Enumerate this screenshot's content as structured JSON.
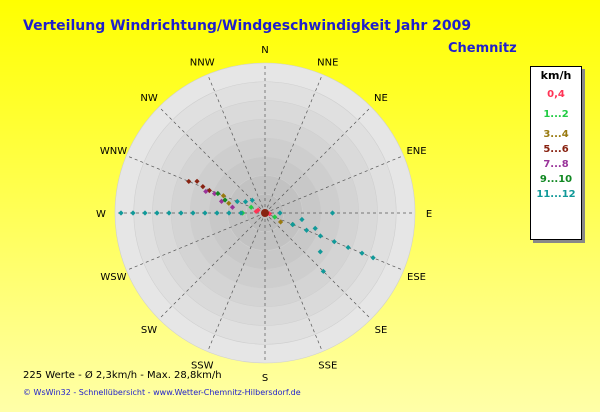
{
  "title": "Verteilung Windrichtung/Windgeschwindigkeit  Jahr 2009",
  "station": "Chemnitz",
  "stats": "225 Werte   -   Ø 2,3km/h   -   Max. 28,8km/h",
  "footer": "© WsWin32  -  Schnellübersicht  -  www.Wetter-Chemnitz-Hilbersdorf.de",
  "colors": {
    "background_top": "#ffff00",
    "background_bottom": "#ffffa8",
    "title": "#1f1fcc",
    "station": "#1f1fcc"
  },
  "legend": {
    "title": "km/h",
    "items": [
      {
        "label": "0,4",
        "color": "#ff3355"
      },
      {
        "label": "1...2",
        "color": "#22cc44"
      },
      {
        "label": "3...4",
        "color": "#997a10"
      },
      {
        "label": "5...6",
        "color": "#882211"
      },
      {
        "label": "7...8",
        "color": "#993399"
      },
      {
        "label": "9...10",
        "color": "#118822"
      },
      {
        "label": "11...12",
        "color": "#119999"
      }
    ]
  },
  "chart_data": {
    "type": "scatter",
    "subtype": "wind-rose-polar",
    "directions": [
      "N",
      "NNE",
      "NE",
      "ENE",
      "E",
      "ESE",
      "SE",
      "SSE",
      "S",
      "SSW",
      "SW",
      "WSW",
      "W",
      "WNW",
      "NW",
      "NNW"
    ],
    "rings": 8,
    "grid": true,
    "legend_position": "right",
    "series": [
      {
        "name": "0,4",
        "color": "#ff3355",
        "points": [
          {
            "dir": 292.5,
            "r": 0.05
          },
          {
            "dir": 100,
            "r": 0.03
          },
          {
            "dir": 280,
            "r": 0.06
          }
        ]
      },
      {
        "name": "1...2",
        "color": "#22cc44",
        "points": [
          {
            "dir": 270,
            "r": 0.15
          },
          {
            "dir": 112.5,
            "r": 0.07
          },
          {
            "dir": 292.5,
            "r": 0.1
          }
        ]
      },
      {
        "name": "3...4",
        "color": "#997a10",
        "points": [
          {
            "dir": 285,
            "r": 0.25
          },
          {
            "dir": 292.5,
            "r": 0.3
          },
          {
            "dir": 120,
            "r": 0.12
          }
        ]
      },
      {
        "name": "5...6",
        "color": "#882211",
        "points": [
          {
            "dir": 292.5,
            "r": 0.55
          },
          {
            "dir": 295,
            "r": 0.5
          },
          {
            "dir": 293,
            "r": 0.45
          },
          {
            "dir": 292,
            "r": 0.4
          }
        ]
      },
      {
        "name": "7...8",
        "color": "#993399",
        "points": [
          {
            "dir": 290,
            "r": 0.42
          },
          {
            "dir": 291,
            "r": 0.36
          },
          {
            "dir": 285,
            "r": 0.3
          },
          {
            "dir": 280,
            "r": 0.22
          }
        ]
      },
      {
        "name": "9...10",
        "color": "#118822",
        "points": [
          {
            "dir": 292.5,
            "r": 0.34
          },
          {
            "dir": 288,
            "r": 0.28
          },
          {
            "dir": 112.5,
            "r": 0.2
          }
        ]
      },
      {
        "name": "11...12",
        "color": "#119999",
        "points": [
          {
            "dir": 270,
            "r": 0.96
          },
          {
            "dir": 270,
            "r": 0.88
          },
          {
            "dir": 270,
            "r": 0.8
          },
          {
            "dir": 270,
            "r": 0.72
          },
          {
            "dir": 270,
            "r": 0.64
          },
          {
            "dir": 270,
            "r": 0.56
          },
          {
            "dir": 270,
            "r": 0.48
          },
          {
            "dir": 270,
            "r": 0.4
          },
          {
            "dir": 270,
            "r": 0.32
          },
          {
            "dir": 270,
            "r": 0.24
          },
          {
            "dir": 270,
            "r": 0.16
          },
          {
            "dir": 112.5,
            "r": 0.2
          },
          {
            "dir": 112.5,
            "r": 0.3
          },
          {
            "dir": 112.5,
            "r": 0.4
          },
          {
            "dir": 112.5,
            "r": 0.5
          },
          {
            "dir": 112.5,
            "r": 0.6
          },
          {
            "dir": 112.5,
            "r": 0.7
          },
          {
            "dir": 112.5,
            "r": 0.78
          },
          {
            "dir": 135,
            "r": 0.55
          },
          {
            "dir": 125,
            "r": 0.45
          },
          {
            "dir": 90,
            "r": 0.1
          },
          {
            "dir": 90,
            "r": 0.45
          },
          {
            "dir": 100,
            "r": 0.25
          },
          {
            "dir": 107,
            "r": 0.35
          },
          {
            "dir": 292.5,
            "r": 0.2
          },
          {
            "dir": 300,
            "r": 0.15
          },
          {
            "dir": 315,
            "r": 0.12
          }
        ]
      }
    ]
  }
}
